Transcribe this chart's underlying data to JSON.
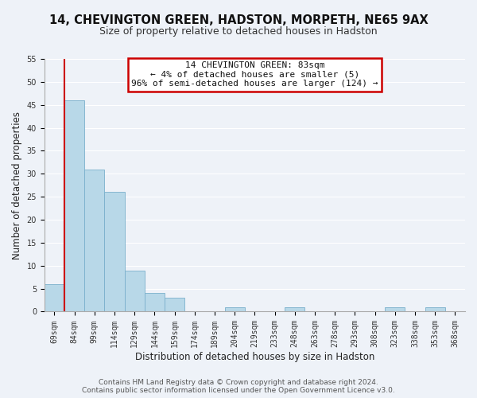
{
  "title": "14, CHEVINGTON GREEN, HADSTON, MORPETH, NE65 9AX",
  "subtitle": "Size of property relative to detached houses in Hadston",
  "xlabel": "Distribution of detached houses by size in Hadston",
  "ylabel": "Number of detached properties",
  "bar_labels": [
    "69sqm",
    "84sqm",
    "99sqm",
    "114sqm",
    "129sqm",
    "144sqm",
    "159sqm",
    "174sqm",
    "189sqm",
    "204sqm",
    "219sqm",
    "233sqm",
    "248sqm",
    "263sqm",
    "278sqm",
    "293sqm",
    "308sqm",
    "323sqm",
    "338sqm",
    "353sqm",
    "368sqm"
  ],
  "bar_values": [
    6,
    46,
    31,
    26,
    9,
    4,
    3,
    0,
    0,
    1,
    0,
    0,
    1,
    0,
    0,
    0,
    0,
    1,
    0,
    1,
    0
  ],
  "bar_color": "#b8d8e8",
  "bar_edge_color": "#7ab0cc",
  "highlight_color": "#cc0000",
  "red_line_x": 0.5,
  "ylim": [
    0,
    55
  ],
  "yticks": [
    0,
    5,
    10,
    15,
    20,
    25,
    30,
    35,
    40,
    45,
    50,
    55
  ],
  "annotation_title": "14 CHEVINGTON GREEN: 83sqm",
  "annotation_line1": "← 4% of detached houses are smaller (5)",
  "annotation_line2": "96% of semi-detached houses are larger (124) →",
  "annotation_box_color": "#ffffff",
  "annotation_border_color": "#cc0000",
  "footer1": "Contains HM Land Registry data © Crown copyright and database right 2024.",
  "footer2": "Contains public sector information licensed under the Open Government Licence v3.0.",
  "background_color": "#eef2f8",
  "plot_bg_color": "#eef2f8",
  "grid_color": "#ffffff",
  "title_fontsize": 10.5,
  "subtitle_fontsize": 9,
  "axis_label_fontsize": 8.5,
  "tick_fontsize": 7,
  "annotation_fontsize": 8,
  "footer_fontsize": 6.5
}
